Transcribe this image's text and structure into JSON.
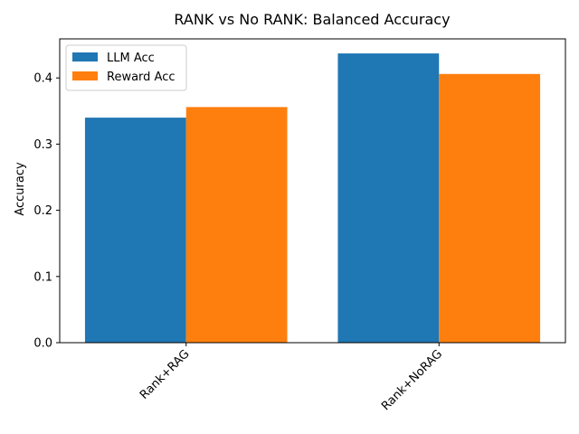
{
  "chart_data": {
    "type": "bar",
    "title": "RANK vs No RANK: Balanced Accuracy",
    "xlabel": "",
    "ylabel": "Accuracy",
    "categories": [
      "Rank+RAG",
      "Rank+NoRAG"
    ],
    "series": [
      {
        "name": "LLM Acc",
        "values": [
          0.34,
          0.437
        ],
        "color": "#1f77b4"
      },
      {
        "name": "Reward Acc",
        "values": [
          0.356,
          0.406
        ],
        "color": "#ff7f0e"
      }
    ],
    "ylim": [
      0,
      0.459
    ],
    "yticks": [
      {
        "value": 0.0,
        "label": "0.0"
      },
      {
        "value": 0.1,
        "label": "0.1"
      },
      {
        "value": 0.2,
        "label": "0.2"
      },
      {
        "value": 0.3,
        "label": "0.3"
      },
      {
        "value": 0.4,
        "label": "0.4"
      }
    ],
    "grid": false,
    "legend": "top-left"
  }
}
